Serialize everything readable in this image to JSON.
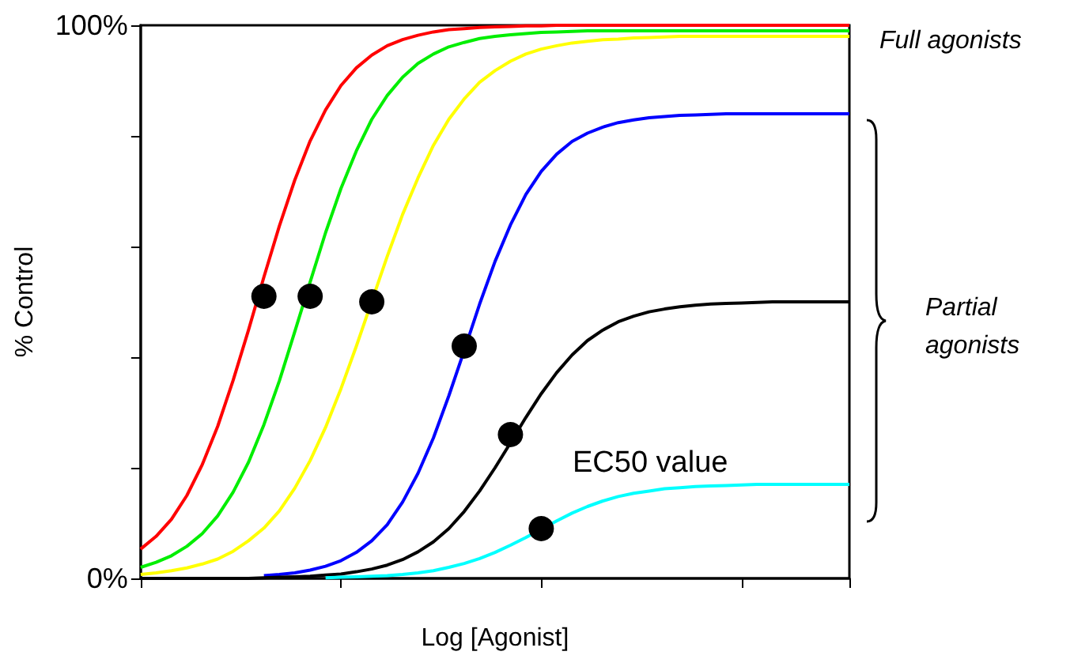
{
  "chart_data": {
    "type": "line",
    "xlabel": "Log [Agonist]",
    "ylabel": "% Control",
    "categories": [
      null,
      null,
      null,
      null,
      null,
      null,
      null,
      null,
      null,
      null,
      null,
      null,
      null,
      null,
      null,
      null,
      null,
      null,
      null,
      null,
      null,
      null,
      null,
      null,
      null,
      null,
      null,
      null,
      null,
      null,
      null,
      null,
      null,
      null,
      null,
      null,
      null,
      null,
      null,
      null,
      null,
      null,
      null,
      null,
      null,
      null,
      null
    ],
    "ylim": [
      0,
      100
    ],
    "yticks": [
      {
        "value": 0,
        "label": "0%"
      },
      {
        "value": 20,
        "label": null
      },
      {
        "value": 40,
        "label": null
      },
      {
        "value": 60,
        "label": null
      },
      {
        "value": 80,
        "label": null
      },
      {
        "value": 100,
        "label": "100%"
      }
    ],
    "tick_labels": "y",
    "annotations": [
      "Full agonists",
      "Partial agonists",
      "EC50 value"
    ],
    "series": [
      {
        "color": "#ff0000",
        "values": [
          5.3,
          7.6,
          10.7,
          15.0,
          20.6,
          27.5,
          35.8,
          44.9,
          54.5,
          63.7,
          72.0,
          79.1,
          84.7,
          89.1,
          92.3,
          94.6,
          96.3,
          97.4,
          98.2,
          98.8,
          99.2,
          99.4,
          99.6,
          99.7,
          99.8,
          99.9,
          99.9,
          100,
          100,
          100,
          100,
          100,
          100,
          100,
          100,
          100,
          100,
          100,
          100,
          100,
          100,
          100,
          100,
          100,
          100,
          100,
          100
        ]
      },
      {
        "color": "#00ee00",
        "values": [
          2.0,
          2.9,
          4.1,
          5.8,
          8.1,
          11.3,
          15.6,
          21.0,
          27.8,
          35.7,
          44.6,
          53.6,
          62.5,
          70.5,
          77.3,
          83.0,
          87.3,
          90.6,
          93.1,
          94.8,
          96.1,
          96.9,
          97.6,
          98.0,
          98.3,
          98.5,
          98.7,
          98.8,
          98.9,
          99,
          99,
          99,
          99,
          99,
          99,
          99,
          99,
          99,
          99,
          99,
          99,
          99,
          99,
          99,
          99,
          99,
          99
        ]
      },
      {
        "color": "#ffff00",
        "values": [
          0.7,
          1.0,
          1.4,
          1.9,
          2.6,
          3.5,
          4.9,
          6.8,
          9.1,
          12.2,
          16.3,
          21.3,
          27.3,
          34.3,
          42.0,
          50.1,
          58.2,
          65.8,
          72.4,
          78.3,
          83.0,
          86.7,
          89.7,
          91.8,
          93.5,
          94.8,
          95.7,
          96.3,
          96.8,
          97.1,
          97.4,
          97.5,
          97.7,
          97.8,
          97.9,
          98,
          98,
          98,
          98,
          98,
          98,
          98,
          98,
          98,
          98,
          98,
          98
        ]
      },
      {
        "color": "#0000ff",
        "values": [
          null,
          null,
          null,
          null,
          null,
          null,
          null,
          null,
          0.5,
          0.7,
          1.0,
          1.5,
          2.2,
          3.2,
          4.7,
          6.8,
          9.7,
          13.8,
          19.0,
          25.4,
          33.0,
          41.2,
          49.6,
          57.3,
          63.9,
          69.4,
          73.6,
          76.7,
          79.0,
          80.5,
          81.6,
          82.4,
          82.9,
          83.3,
          83.5,
          83.7,
          83.8,
          83.9,
          84,
          84,
          84,
          84,
          84,
          84,
          84,
          84,
          84
        ]
      },
      {
        "color": "#000000",
        "values": [
          0,
          0,
          0,
          0,
          0,
          0,
          0,
          0,
          0.1,
          0.2,
          0.3,
          0.4,
          0.6,
          0.8,
          1.2,
          1.7,
          2.4,
          3.4,
          4.8,
          6.6,
          9.0,
          12.1,
          15.8,
          20.0,
          24.5,
          29.1,
          33.4,
          37.2,
          40.4,
          43.0,
          44.9,
          46.4,
          47.4,
          48.2,
          48.7,
          49.1,
          49.4,
          49.6,
          49.7,
          49.8,
          49.9,
          50,
          50,
          50,
          50,
          50,
          50
        ]
      },
      {
        "color": "#00ffff",
        "values": [
          null,
          null,
          null,
          null,
          null,
          null,
          null,
          null,
          null,
          null,
          null,
          null,
          0.1,
          0.2,
          0.3,
          0.4,
          0.5,
          0.7,
          1.0,
          1.4,
          2.0,
          2.7,
          3.6,
          4.7,
          6.0,
          7.4,
          8.9,
          10.4,
          11.8,
          13.0,
          14.0,
          14.8,
          15.4,
          15.8,
          16.2,
          16.4,
          16.6,
          16.7,
          16.8,
          16.9,
          17,
          17,
          17,
          17,
          17,
          17,
          17
        ]
      },
      {
        "type": "scatter",
        "color": "#000000",
        "values": [
          null,
          null,
          null,
          null,
          null,
          null,
          null,
          null,
          51,
          null,
          null,
          51,
          null,
          null,
          null,
          50,
          null,
          null,
          null,
          null,
          null,
          42,
          null,
          null,
          26,
          null,
          9,
          null,
          null,
          null,
          null,
          null,
          null,
          null,
          null,
          null,
          null,
          null,
          null,
          null,
          null,
          null,
          null,
          null,
          null,
          null,
          null
        ]
      }
    ]
  }
}
